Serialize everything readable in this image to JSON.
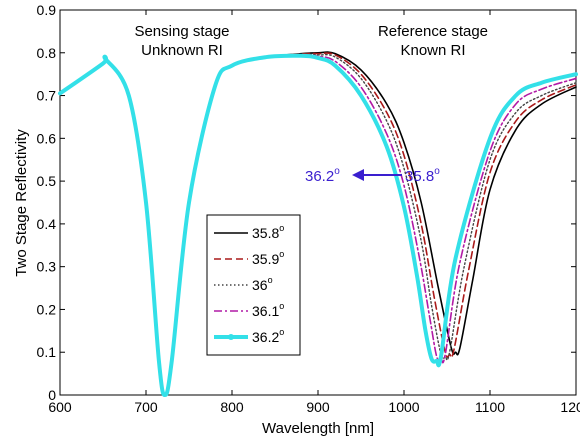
{
  "chart_data": {
    "type": "line",
    "title": "",
    "xlabel": "Wavelength [nm]",
    "ylabel": "Two Stage Reflectivity",
    "xlim": [
      600,
      1200
    ],
    "ylim": [
      0,
      0.9
    ],
    "x_ticks": [
      "600",
      "700",
      "800",
      "900",
      "1000",
      "1100",
      "1200"
    ],
    "y_ticks": [
      "0",
      "0.1",
      "0.2",
      "0.3",
      "0.4",
      "0.5",
      "0.6",
      "0.7",
      "0.8",
      "0.9"
    ],
    "grid": false,
    "legend_position": "lower-center",
    "annotations": {
      "sensing_line1": "Sensing stage",
      "sensing_line2": "Unknown RI",
      "reference_line1": "Reference stage",
      "reference_line2": "Known RI",
      "arrow_start_base": "36.2",
      "arrow_end_base": "35.8",
      "degree_mark": "o"
    },
    "series": [
      {
        "name": "35.8",
        "color": "#000000",
        "style": "solid",
        "x": [
          600,
          650,
          653,
          680,
          700,
          715,
          722,
          730,
          750,
          780,
          800,
          840,
          880,
          900,
          920,
          950,
          980,
          1000,
          1020,
          1040,
          1055,
          1060,
          1065,
          1080,
          1100,
          1130,
          1160,
          1200
        ],
        "y": [
          0.705,
          0.775,
          0.785,
          0.7,
          0.45,
          0.08,
          0.0,
          0.08,
          0.45,
          0.72,
          0.77,
          0.79,
          0.798,
          0.8,
          0.798,
          0.76,
          0.68,
          0.59,
          0.45,
          0.25,
          0.11,
          0.1,
          0.11,
          0.27,
          0.48,
          0.62,
          0.68,
          0.72
        ]
      },
      {
        "name": "35.9",
        "color": "#aa1a1a",
        "style": "dash",
        "x": [
          600,
          650,
          653,
          680,
          700,
          715,
          722,
          730,
          750,
          780,
          800,
          840,
          880,
          900,
          920,
          950,
          980,
          1000,
          1020,
          1035,
          1048,
          1053,
          1058,
          1075,
          1100,
          1130,
          1160,
          1200
        ],
        "y": [
          0.705,
          0.775,
          0.785,
          0.7,
          0.45,
          0.08,
          0.0,
          0.08,
          0.45,
          0.72,
          0.77,
          0.79,
          0.797,
          0.798,
          0.795,
          0.75,
          0.66,
          0.56,
          0.4,
          0.23,
          0.1,
          0.095,
          0.105,
          0.29,
          0.52,
          0.64,
          0.69,
          0.725
        ]
      },
      {
        "name": "36",
        "color": "#444444",
        "style": "dot",
        "x": [
          600,
          650,
          653,
          680,
          700,
          715,
          722,
          730,
          750,
          780,
          800,
          840,
          880,
          900,
          920,
          950,
          980,
          1000,
          1020,
          1032,
          1043,
          1048,
          1053,
          1070,
          1100,
          1130,
          1160,
          1200
        ],
        "y": [
          0.705,
          0.775,
          0.785,
          0.7,
          0.45,
          0.08,
          0.0,
          0.08,
          0.45,
          0.72,
          0.77,
          0.79,
          0.796,
          0.795,
          0.79,
          0.74,
          0.64,
          0.53,
          0.36,
          0.21,
          0.095,
          0.09,
          0.1,
          0.3,
          0.55,
          0.66,
          0.7,
          0.73
        ]
      },
      {
        "name": "36.1",
        "color": "#b11aa6",
        "style": "dashdot",
        "x": [
          600,
          650,
          653,
          680,
          700,
          715,
          722,
          730,
          750,
          780,
          800,
          840,
          880,
          900,
          920,
          950,
          980,
          1000,
          1018,
          1030,
          1038,
          1043,
          1048,
          1065,
          1100,
          1130,
          1160,
          1200
        ],
        "y": [
          0.705,
          0.775,
          0.785,
          0.7,
          0.45,
          0.08,
          0.0,
          0.08,
          0.45,
          0.72,
          0.77,
          0.79,
          0.795,
          0.792,
          0.78,
          0.72,
          0.61,
          0.49,
          0.32,
          0.18,
          0.09,
          0.085,
          0.095,
          0.31,
          0.57,
          0.68,
          0.715,
          0.74
        ]
      },
      {
        "name": "36.2",
        "color": "#33e0e8",
        "style": "thick",
        "x": [
          600,
          650,
          653,
          680,
          700,
          715,
          722,
          730,
          750,
          780,
          800,
          840,
          880,
          900,
          920,
          950,
          980,
          1000,
          1015,
          1025,
          1032,
          1038,
          1043,
          1060,
          1100,
          1130,
          1160,
          1200
        ],
        "y": [
          0.705,
          0.775,
          0.785,
          0.7,
          0.45,
          0.08,
          0.0,
          0.08,
          0.45,
          0.72,
          0.77,
          0.79,
          0.793,
          0.788,
          0.77,
          0.7,
          0.58,
          0.44,
          0.28,
          0.15,
          0.085,
          0.08,
          0.09,
          0.32,
          0.6,
          0.7,
          0.73,
          0.75
        ]
      }
    ]
  }
}
